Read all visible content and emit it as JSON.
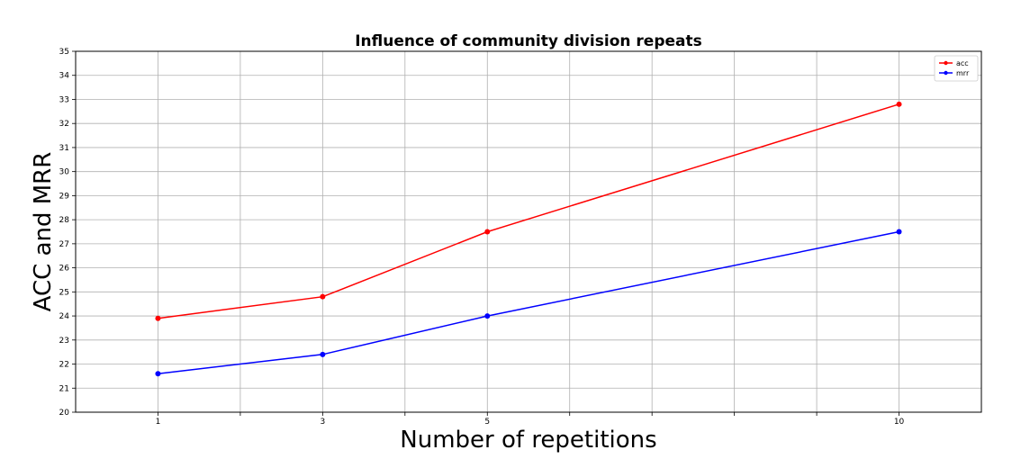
{
  "chart_data": {
    "type": "line",
    "title": "Influence of community division repeats",
    "xlabel": "Number of repetitions",
    "ylabel": "ACC and MRR",
    "x": [
      1,
      3,
      5,
      10
    ],
    "xlim": [
      0,
      11
    ],
    "ylim": [
      20,
      35
    ],
    "xticks": [
      1,
      3,
      5,
      10
    ],
    "xgrid": [
      1,
      2,
      3,
      4,
      5,
      6,
      7,
      8,
      9,
      10
    ],
    "yticks": [
      20,
      21,
      22,
      23,
      24,
      25,
      26,
      27,
      28,
      29,
      30,
      31,
      32,
      33,
      34,
      35
    ],
    "grid": true,
    "legend_position": "top-right",
    "series": [
      {
        "name": "acc",
        "color": "#ff0000",
        "values": [
          23.9,
          24.8,
          27.5,
          32.8
        ]
      },
      {
        "name": "mrr",
        "color": "#0000ff",
        "values": [
          21.6,
          22.4,
          24.0,
          27.5
        ]
      }
    ]
  }
}
